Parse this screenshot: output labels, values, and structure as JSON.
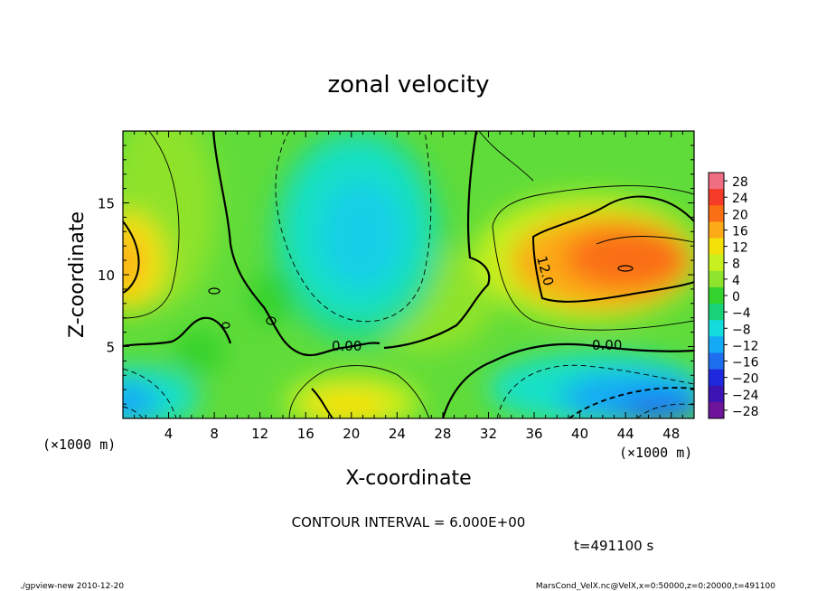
{
  "chart_data": {
    "type": "heatmap",
    "title": "zonal velocity",
    "xlabel": "X-coordinate",
    "ylabel": "Z-coordinate",
    "x_unit_left": "(×1000 m)",
    "x_unit_right": "(×1000 m)",
    "xlim": [
      0,
      50
    ],
    "ylim": [
      0,
      20
    ],
    "x_ticks": [
      4,
      8,
      12,
      16,
      20,
      24,
      28,
      32,
      36,
      40,
      44,
      48
    ],
    "y_ticks": [
      5,
      10,
      15
    ],
    "colorbar_levels": [
      28,
      24,
      20,
      16,
      12,
      8,
      4,
      0,
      -4,
      -8,
      -12,
      -16,
      -20,
      -24,
      -28
    ],
    "colorbar_colors": [
      "#f06e82",
      "#f53c28",
      "#fa6e14",
      "#fcaa18",
      "#f5e10a",
      "#c8f01e",
      "#8ee32c",
      "#34d22c",
      "#18d278",
      "#14dcdc",
      "#14aaf5",
      "#1e6ef0",
      "#1e28dc",
      "#3c14b4",
      "#6e149b"
    ],
    "contour_labels": [
      "0.00",
      "0.00",
      "12.0"
    ],
    "contour_interval_text": "CONTOUR INTERVAL = 6.000E+00",
    "time_text": "t=491100 s",
    "features": [
      {
        "x": 1,
        "z": 11,
        "value": 15
      },
      {
        "x": 44,
        "z": 11,
        "value": 19
      },
      {
        "x": 21,
        "z": 11,
        "value": -10
      },
      {
        "x": 20,
        "z": 1.5,
        "value": 9
      },
      {
        "x": 46,
        "z": 1.5,
        "value": -14
      },
      {
        "x": 1,
        "z": 1.5,
        "value": -11
      }
    ]
  },
  "footer": {
    "left": "./gpview-new  2010-12-20",
    "right": "MarsCond_VelX.nc@VelX,x=0:50000,z=0:20000,t=491100"
  }
}
